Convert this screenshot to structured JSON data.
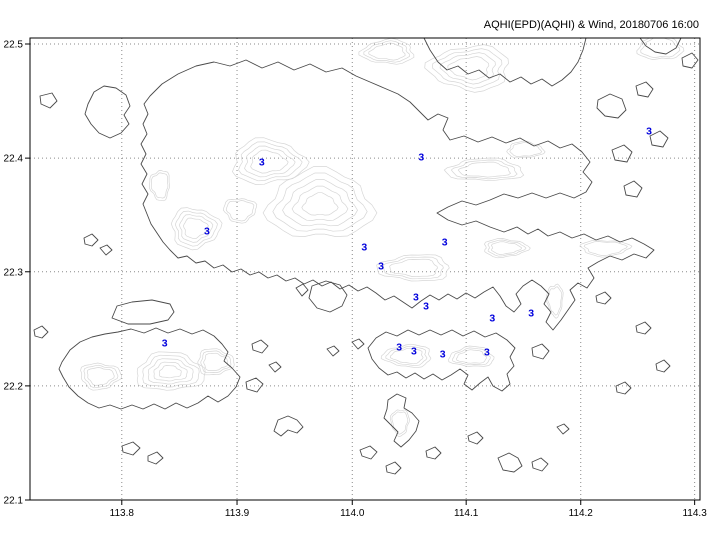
{
  "title": "AQHI(EPD)(AQHI) & Wind, 20180706 16:00",
  "colors": {
    "background": "#ffffff",
    "frame": "#000000",
    "gridline": "#8a8a8a",
    "coastline": "#4a4a4a",
    "terrain_contour": "#d6d6d6",
    "station_value": "#0000dd",
    "axis_text": "#000000"
  },
  "chart_data": {
    "type": "scatter",
    "title": "AQHI(EPD)(AQHI) & Wind, 20180706 16:00",
    "subtitle": "",
    "xlabel": "",
    "ylabel": "",
    "xlim": [
      113.72,
      114.3
    ],
    "ylim": [
      22.1,
      22.51
    ],
    "grid": "dotted",
    "legend": "none",
    "x_ticks": [
      {
        "label": "113.8",
        "pos": 0.137
      },
      {
        "label": "113.9",
        "pos": 0.309
      },
      {
        "label": "114.0",
        "pos": 0.481
      },
      {
        "label": "114.1",
        "pos": 0.651
      },
      {
        "label": "114.2",
        "pos": 0.822
      },
      {
        "label": "114.3",
        "pos": 0.992
      }
    ],
    "y_ticks": [
      {
        "label": "22.5",
        "pos": 0.013
      },
      {
        "label": "22.4",
        "pos": 0.26
      },
      {
        "label": "22.3",
        "pos": 0.506
      },
      {
        "label": "22.2",
        "pos": 0.753
      },
      {
        "label": "22.1",
        "pos": 1.0
      }
    ],
    "value_unit": "AQHI",
    "stations": [
      {
        "value": 3,
        "fx": 0.924,
        "fy": 0.201
      },
      {
        "value": 3,
        "fx": 0.346,
        "fy": 0.268
      },
      {
        "value": 3,
        "fx": 0.584,
        "fy": 0.258
      },
      {
        "value": 3,
        "fx": 0.264,
        "fy": 0.418
      },
      {
        "value": 3,
        "fx": 0.499,
        "fy": 0.452
      },
      {
        "value": 3,
        "fx": 0.619,
        "fy": 0.442
      },
      {
        "value": 3,
        "fx": 0.524,
        "fy": 0.493
      },
      {
        "value": 3,
        "fx": 0.576,
        "fy": 0.561
      },
      {
        "value": 3,
        "fx": 0.591,
        "fy": 0.58
      },
      {
        "value": 3,
        "fx": 0.69,
        "fy": 0.606
      },
      {
        "value": 3,
        "fx": 0.748,
        "fy": 0.595
      },
      {
        "value": 3,
        "fx": 0.201,
        "fy": 0.66
      },
      {
        "value": 3,
        "fx": 0.551,
        "fy": 0.669
      },
      {
        "value": 3,
        "fx": 0.573,
        "fy": 0.677
      },
      {
        "value": 3,
        "fx": 0.616,
        "fy": 0.684
      },
      {
        "value": 3,
        "fx": 0.682,
        "fy": 0.68
      }
    ]
  }
}
